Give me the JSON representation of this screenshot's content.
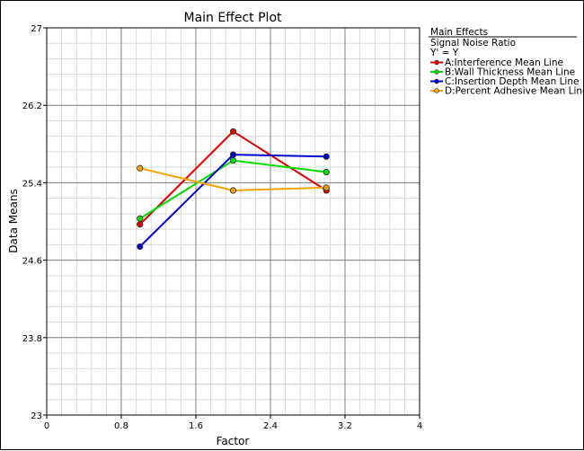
{
  "chart_data": {
    "type": "line",
    "title": "Main Effect Plot",
    "xlabel": "Factor",
    "ylabel": "Data Means",
    "xlim": [
      0,
      4
    ],
    "ylim": [
      23,
      27
    ],
    "xticks": [
      0,
      0.8,
      1.6,
      2.4,
      3.2,
      4
    ],
    "yticks": [
      23,
      23.8,
      24.6,
      25.4,
      26.2,
      27
    ],
    "xtick_labels": [
      "0",
      "0.8",
      "1.6",
      "2.4",
      "3.2",
      "4"
    ],
    "ytick_labels": [
      "23",
      "23.8",
      "24.6",
      "25.4",
      "26.2",
      "27"
    ],
    "grid": true,
    "x": [
      1,
      2,
      3
    ],
    "series": [
      {
        "name": "A:Interference Mean Line",
        "color": "#e00000",
        "values": [
          24.97,
          25.93,
          25.32
        ]
      },
      {
        "name": "B:Wall Thickness Mean Line",
        "color": "#00dd00",
        "values": [
          25.03,
          25.63,
          25.51
        ]
      },
      {
        "name": "C:Insertion Depth Mean Line",
        "color": "#0000cc",
        "values": [
          24.74,
          25.69,
          25.67
        ]
      },
      {
        "name": "D:Percent Adhesive Mean Line",
        "color": "#f5a300",
        "values": [
          25.55,
          25.32,
          25.35
        ]
      }
    ],
    "legend": {
      "title": "Main Effects",
      "subtitle_1": "Signal Noise Ratio",
      "subtitle_2": "Y' = Y",
      "position": "top-right, outside plot"
    }
  }
}
